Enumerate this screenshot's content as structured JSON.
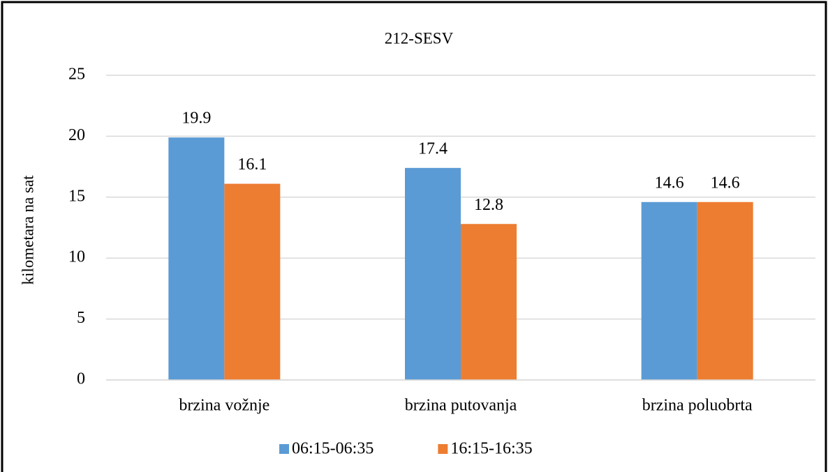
{
  "chart_data": {
    "type": "bar",
    "title": "212-SESV",
    "y_label": "kilometara na sat",
    "categories": [
      "brzina vožnje",
      "brzina putovanja",
      "brzina poluobrta"
    ],
    "series": [
      {
        "name": "06:15-06:35",
        "color": "#5b9bd5",
        "values": [
          19.9,
          17.4,
          14.6
        ]
      },
      {
        "name": "16:15-16:35",
        "color": "#ed7d31",
        "values": [
          16.1,
          12.8,
          14.6
        ]
      }
    ],
    "ylim": [
      0,
      25
    ],
    "yticks": [
      0,
      5,
      10,
      15,
      20,
      25
    ],
    "grid": true,
    "legend": "bottom"
  }
}
